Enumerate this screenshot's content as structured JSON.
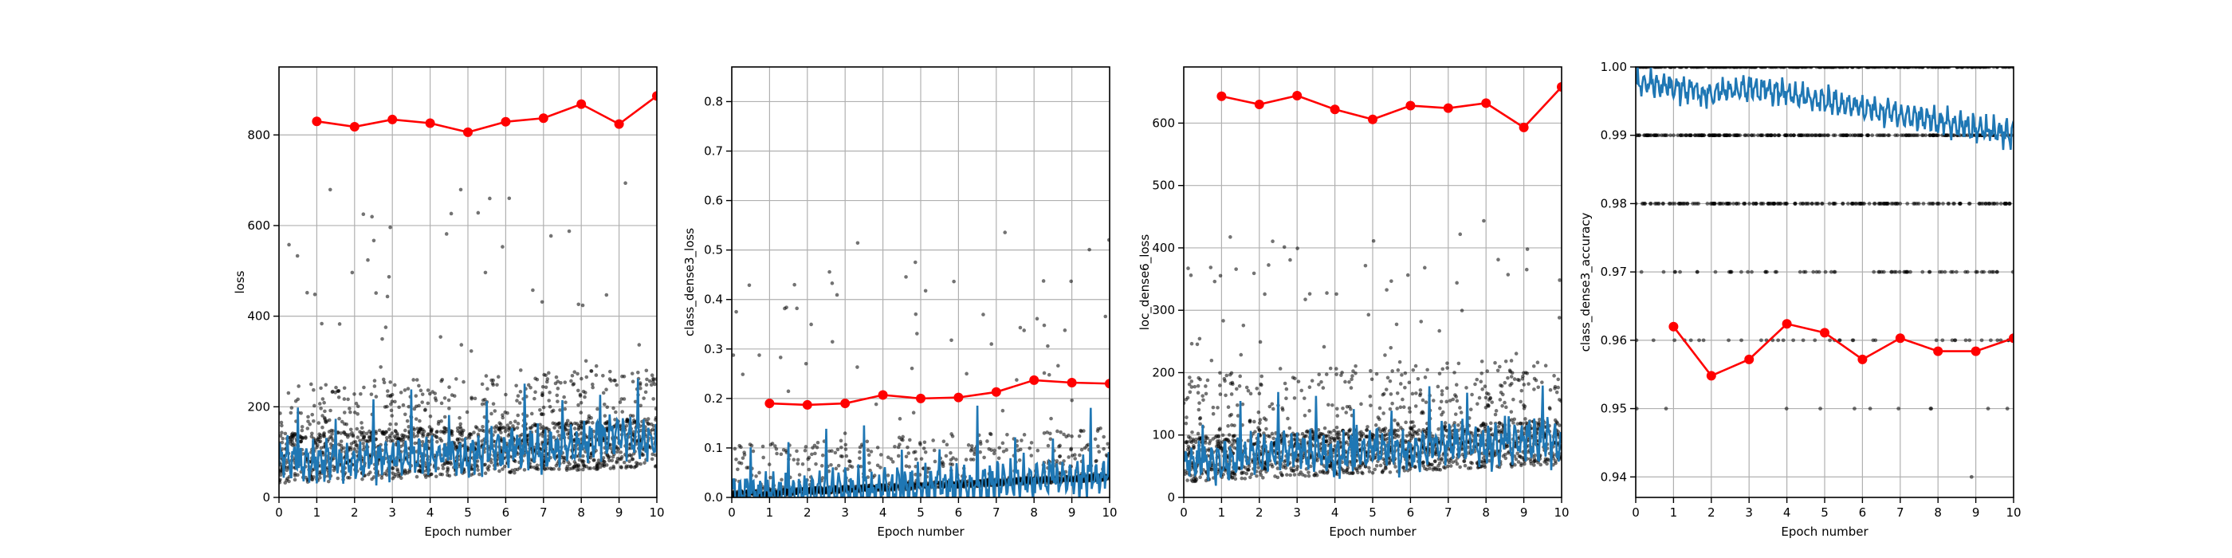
{
  "colors": {
    "scatter": "#000000",
    "smooth": "#1f77b4",
    "epoch_mean": "#ff0000",
    "grid": "#b0b0b0"
  },
  "chart_data": [
    {
      "type": "line",
      "ylabel": "loss",
      "xlabel": "Epoch number",
      "xlim": [
        0,
        10
      ],
      "ylim": [
        0,
        950
      ],
      "xticks": [
        0,
        1,
        2,
        3,
        4,
        5,
        6,
        7,
        8,
        9,
        10
      ],
      "yticks": [
        0,
        200,
        400,
        600,
        800
      ],
      "ytick_labels": [
        "0",
        "200",
        "400",
        "600",
        "800"
      ],
      "grid": true,
      "scatter_profile": {
        "base": 90,
        "spread": 80,
        "floor": 30,
        "outlier_max": 650
      },
      "series": [
        {
          "x": [
            1,
            2,
            3,
            4,
            5,
            6,
            7,
            8,
            9,
            10
          ],
          "values": [
            830,
            818,
            834,
            826,
            806,
            829,
            837,
            868,
            824,
            886
          ]
        }
      ],
      "smooth_profile": [
        85,
        78,
        80,
        90,
        88,
        95,
        110,
        100,
        118,
        140,
        120
      ]
    },
    {
      "type": "line",
      "ylabel": "class_dense3_loss",
      "xlabel": "Epoch number",
      "xlim": [
        0,
        10
      ],
      "ylim": [
        0,
        0.87
      ],
      "xticks": [
        0,
        1,
        2,
        3,
        4,
        5,
        6,
        7,
        8,
        9,
        10
      ],
      "yticks": [
        0,
        0.1,
        0.2,
        0.3,
        0.4,
        0.5,
        0.6,
        0.7,
        0.8
      ],
      "ytick_labels": [
        "0.0",
        "0.1",
        "0.2",
        "0.3",
        "0.4",
        "0.5",
        "0.6",
        "0.7",
        "0.8"
      ],
      "grid": true,
      "scatter_profile": {
        "base": 0.01,
        "spread": 0.06,
        "floor": 0.0,
        "outlier_max": 0.52
      },
      "series": [
        {
          "x": [
            1,
            2,
            3,
            4,
            5,
            6,
            7,
            8,
            9,
            10
          ],
          "values": [
            0.19,
            0.187,
            0.19,
            0.207,
            0.2,
            0.202,
            0.213,
            0.237,
            0.232,
            0.23
          ]
        }
      ],
      "smooth_profile": [
        0.01,
        0.01,
        0.012,
        0.015,
        0.018,
        0.02,
        0.025,
        0.03,
        0.035,
        0.04,
        0.045
      ]
    },
    {
      "type": "line",
      "ylabel": "loc_dense6_loss",
      "xlabel": "Epoch number",
      "xlim": [
        0,
        10
      ],
      "ylim": [
        0,
        690
      ],
      "xticks": [
        0,
        1,
        2,
        3,
        4,
        5,
        6,
        7,
        8,
        9,
        10
      ],
      "yticks": [
        0,
        100,
        200,
        300,
        400,
        500,
        600
      ],
      "ytick_labels": [
        "0",
        "100",
        "200",
        "300",
        "400",
        "500",
        "600"
      ],
      "grid": true,
      "scatter_profile": {
        "base": 60,
        "spread": 70,
        "floor": 25,
        "outlier_max": 400
      },
      "series": [
        {
          "x": [
            1,
            2,
            3,
            4,
            5,
            6,
            7,
            8,
            9,
            10
          ],
          "values": [
            643,
            630,
            644,
            622,
            606,
            628,
            624,
            632,
            593,
            658
          ]
        }
      ],
      "smooth_profile": [
        60,
        55,
        70,
        75,
        65,
        80,
        70,
        90,
        80,
        95,
        85
      ]
    },
    {
      "type": "line",
      "ylabel": "class_dense3_accuracy",
      "xlabel": "Epoch number",
      "xlim": [
        0,
        10
      ],
      "ylim": [
        0.937,
        1.0
      ],
      "xticks": [
        0,
        1,
        2,
        3,
        4,
        5,
        6,
        7,
        8,
        9,
        10
      ],
      "yticks": [
        0.94,
        0.95,
        0.96,
        0.97,
        0.98,
        0.99,
        1.0
      ],
      "ytick_labels": [
        "0.94",
        "0.95",
        "0.96",
        "0.97",
        "0.98",
        "0.99",
        "1.00"
      ],
      "grid": true,
      "scatter_levels": [
        1.0,
        0.99,
        0.98,
        0.97,
        0.96,
        0.95,
        0.94
      ],
      "series": [
        {
          "x": [
            1,
            2,
            3,
            4,
            5,
            6,
            7,
            8,
            9,
            10
          ],
          "values": [
            0.962,
            0.9548,
            0.9572,
            0.9624,
            0.9611,
            0.9572,
            0.9603,
            0.9584,
            0.9584,
            0.9603
          ]
        }
      ],
      "smooth_profile": [
        0.998,
        0.997,
        0.996,
        0.997,
        0.996,
        0.995,
        0.994,
        0.993,
        0.992,
        0.991,
        0.99
      ]
    }
  ]
}
